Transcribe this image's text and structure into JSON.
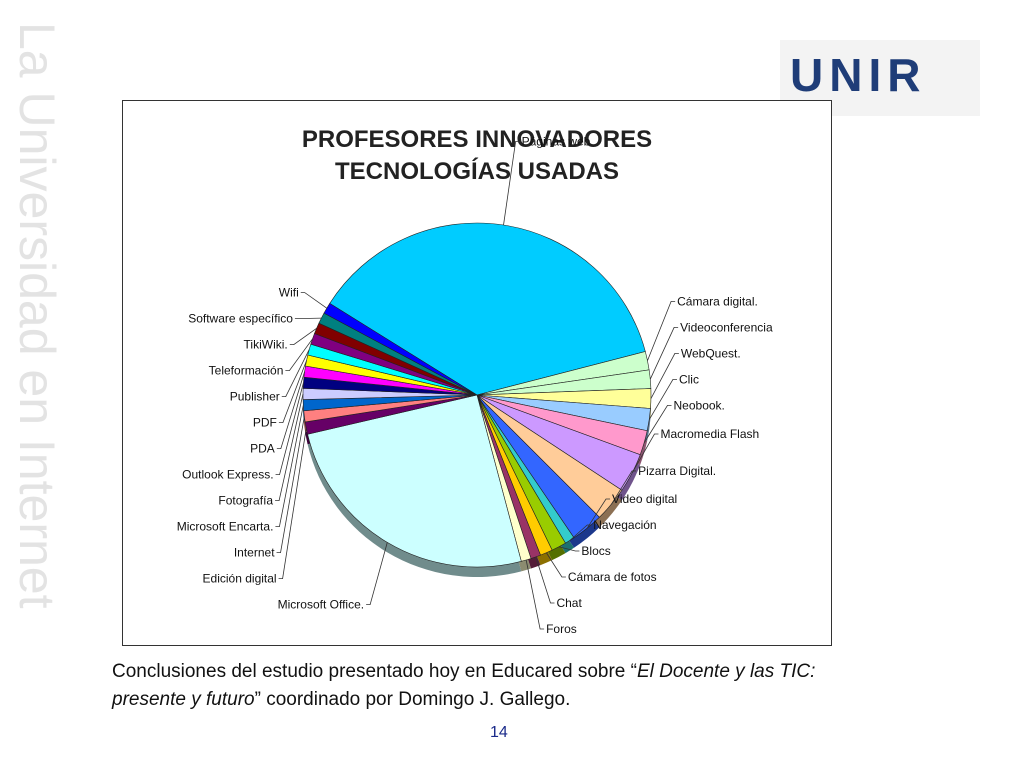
{
  "slide": {
    "vertical_text": "La Universidad en Internet",
    "logo_text": "UNIR",
    "caption": {
      "part1": "Conclusiones del estudio presentado hoy en Educared sobre “",
      "italic1": "El Docente y las TIC: presente y futuro",
      "part2": "” coordinado por Domingo J. Gallego."
    },
    "page_number": "14"
  },
  "chart_data": {
    "type": "pie",
    "title": "PROFESORES INNOVADORES",
    "subtitle": "TECNOLOGÍAS USADAS",
    "slices": [
      {
        "label": "Páginas web",
        "value": 32.0,
        "color": "#00ccff"
      },
      {
        "label": "Cámara digital.",
        "value": 1.5,
        "color": "#ccffcc"
      },
      {
        "label": "Videoconferencia",
        "value": 1.5,
        "color": "#ccffcc"
      },
      {
        "label": "WebQuest.",
        "value": 1.6,
        "color": "#ffff99"
      },
      {
        "label": "Clic",
        "value": 1.8,
        "color": "#99ccff"
      },
      {
        "label": "Neobook.",
        "value": 2.0,
        "color": "#ff99cc"
      },
      {
        "label": "Macromedia Flash",
        "value": 3.2,
        "color": "#cc99ff"
      },
      {
        "label": "Pizarra Digital.",
        "value": 2.8,
        "color": "#ffcc99"
      },
      {
        "label": "Video digital",
        "value": 2.6,
        "color": "#3366ff"
      },
      {
        "label": "Navegación",
        "value": 0.8,
        "color": "#33cccc"
      },
      {
        "label": "Blocs",
        "value": 1.2,
        "color": "#99cc00"
      },
      {
        "label": "Cámara de fotos",
        "value": 1.0,
        "color": "#ffcc00"
      },
      {
        "label": "Chat",
        "value": 0.8,
        "color": "#993366"
      },
      {
        "label": "Foros",
        "value": 0.8,
        "color": "#ffffcc"
      },
      {
        "label": "Microsoft Office.",
        "value": 22.0,
        "color": "#ccffff"
      },
      {
        "label": "Edición digital",
        "value": 1.0,
        "color": "#660066"
      },
      {
        "label": "Internet",
        "value": 0.9,
        "color": "#ff8080"
      },
      {
        "label": "Microsoft Encarta.",
        "value": 0.9,
        "color": "#0066cc"
      },
      {
        "label": "Fotografía",
        "value": 0.9,
        "color": "#ccccff"
      },
      {
        "label": "Outlook Express.",
        "value": 0.9,
        "color": "#000080"
      },
      {
        "label": "PDA",
        "value": 0.9,
        "color": "#ff00ff"
      },
      {
        "label": "PDF",
        "value": 0.9,
        "color": "#ffff00"
      },
      {
        "label": "Publisher",
        "value": 0.9,
        "color": "#00ffff"
      },
      {
        "label": "Teleformación",
        "value": 0.9,
        "color": "#800080"
      },
      {
        "label": "TikiWiki.",
        "value": 0.9,
        "color": "#800000"
      },
      {
        "label": "Software específico",
        "value": 0.9,
        "color": "#008080"
      },
      {
        "label": "Wifi",
        "value": 0.9,
        "color": "#0000ff"
      }
    ]
  }
}
